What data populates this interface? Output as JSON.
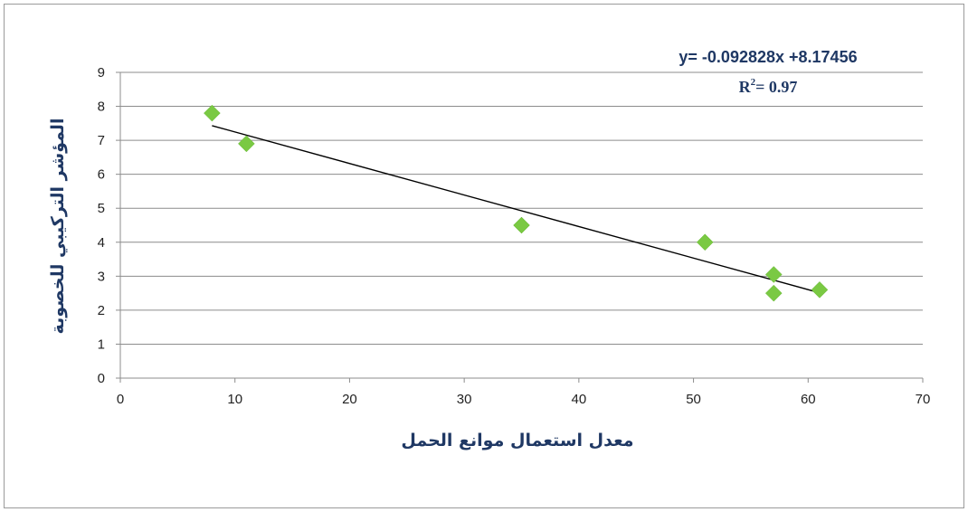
{
  "chart_data": {
    "type": "scatter",
    "x": [
      8,
      11,
      35,
      51,
      57,
      57,
      61
    ],
    "y": [
      7.8,
      6.9,
      4.5,
      4.0,
      3.05,
      2.5,
      2.6
    ],
    "xlabel": "معدل استعمال موانع الحمل",
    "ylabel": "المؤشر التركيبي للخصوبة",
    "xlim": [
      0,
      70
    ],
    "ylim": [
      0,
      9
    ],
    "xticks": [
      "0",
      "10",
      "20",
      "30",
      "40",
      "50",
      "60",
      "70"
    ],
    "yticks": [
      "0",
      "1",
      "2",
      "3",
      "4",
      "5",
      "6",
      "7",
      "8",
      "9"
    ],
    "grid": true,
    "legend": "none",
    "marker_color": "#7ac943",
    "trendline": {
      "slope": -0.092828,
      "intercept": 8.17456,
      "x_range": [
        8,
        61
      ],
      "color": "#000000",
      "equation_label": "y= -0.092828x +8.17456",
      "r2_prefix": "R",
      "r2_sup": "2",
      "r2_suffix": "= ",
      "r2_value": "0.97"
    }
  }
}
